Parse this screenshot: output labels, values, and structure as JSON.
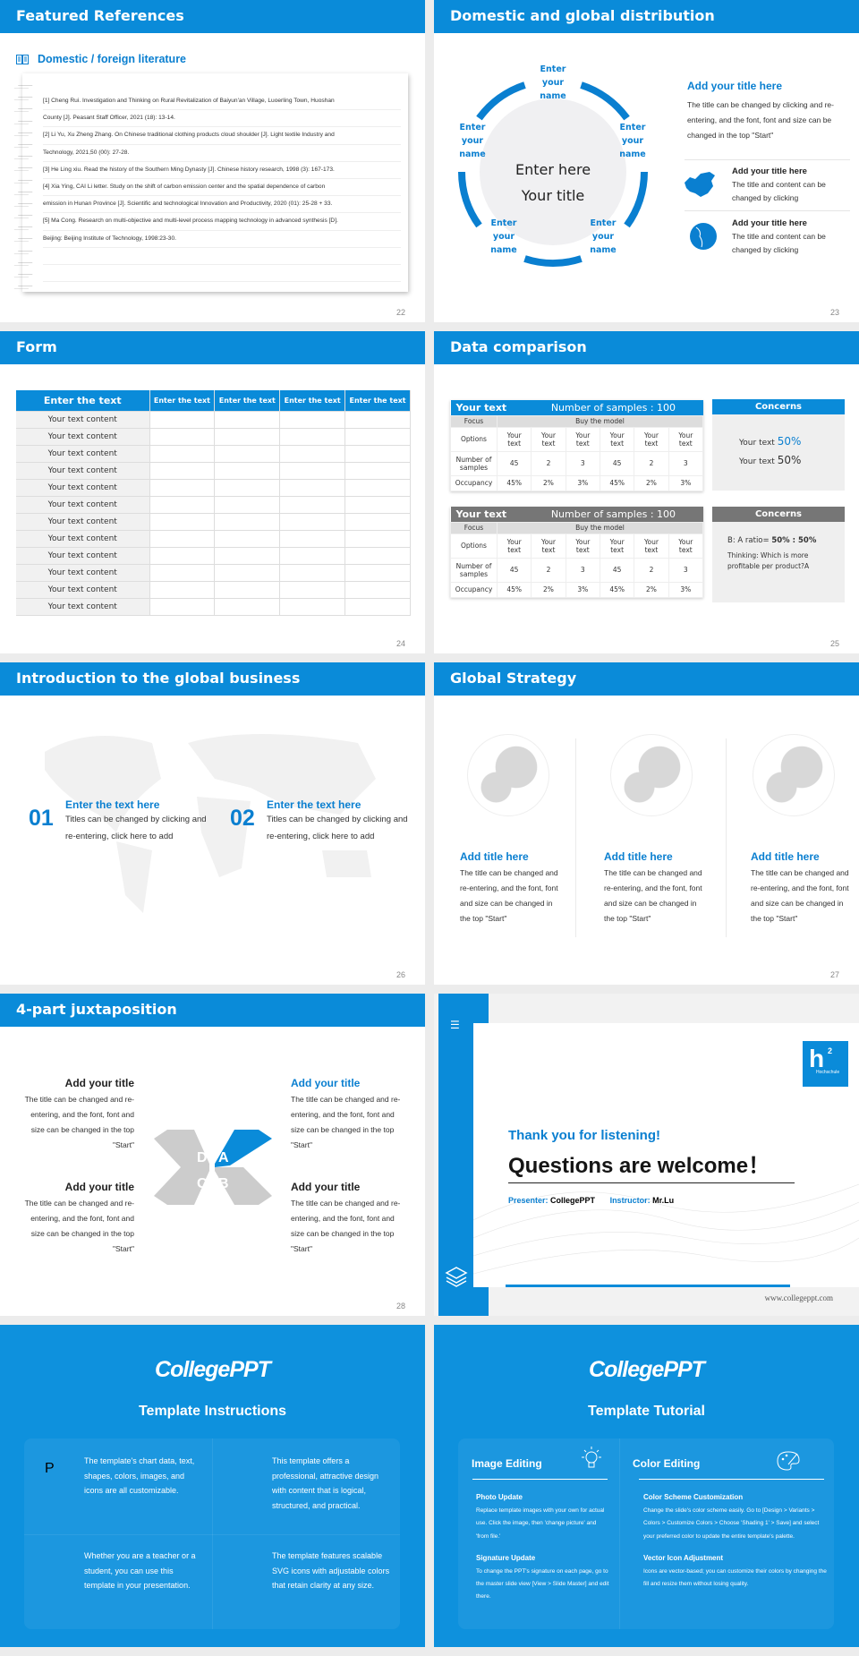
{
  "colors": {
    "accent": "#0a8bd9",
    "gray_header": "#767676",
    "instruction_bg": "#0e91dd"
  },
  "slides": {
    "s22": {
      "title": "Featured References",
      "subtitle": "Domestic / foreign literature",
      "subtitle_icon": "book-icon",
      "page": "22",
      "lines": [
        "[1] Cheng Rui. Investigation and Thinking on Rural Revitalization of Baiyun'an Village, Luoerling Town, Huoshan",
        "County [J]. Peasant Staff Officer, 2021 (18): 13-14.",
        "[2] Li Yu, Xu Zheng Zhang. On Chinese traditional clothing products cloud shoulder [J]. Light textile Industry and",
        "Technology, 2021,50 (00): 27-28.",
        "[3] He Ling xiu. Read the history of the Southern Ming Dynasty [J]. Chinese history research, 1998 (3): 167-173.",
        "[4] Xia Ying, CAI Li letter. Study on the shift of carbon emission center and the spatial dependence of carbon",
        "emission in Hunan Province [J]. Scientific and technological Innovation and Productivity, 2020 (01): 25-28 + 33.",
        "[5] Ma Cong. Research on multi-objective and multi-level process mapping technology in advanced synthesis [D].",
        "Beijing: Beijing Institute of Technology, 1998:23-30.",
        "",
        ""
      ]
    },
    "s23": {
      "title": "Domestic and global distribution",
      "page": "23",
      "center_line1": "Enter here",
      "center_line2": "Your title",
      "node_label": [
        "Enter",
        "your",
        "name"
      ],
      "main_title": "Add your title here",
      "main_text": "The title can be changed by clicking and re-entering, and the font, font and size can be changed in the top \"Start\"",
      "items": [
        {
          "icon": "china-map-icon",
          "title": "Add your title here",
          "text": "The title and content can be changed by clicking"
        },
        {
          "icon": "globe-icon",
          "title": "Add your title here",
          "text": "The title and content can be changed by clicking"
        }
      ]
    },
    "s24": {
      "title": "Form",
      "page": "24",
      "headers": [
        "Enter the text",
        "Enter the text",
        "Enter the text",
        "Enter the text",
        "Enter the text"
      ],
      "rows": [
        "Your text content",
        "Your text content",
        "Your text content",
        "Your text content",
        "Your text content",
        "Your text content",
        "Your text content",
        "Your text content",
        "Your text content",
        "Your text content",
        "Your text content",
        "Your text content"
      ]
    },
    "s25": {
      "title": "Data comparison",
      "page": "25",
      "tables": [
        {
          "label": "Your text",
          "samples": "Number of samples : 100",
          "focus": "Focus",
          "model": "Buy the model",
          "options": "Options",
          "option_values": [
            "Your text",
            "Your text",
            "Your text",
            "Your text",
            "Your text",
            "Your text"
          ],
          "num_label": "Number of samples",
          "nums": [
            "45",
            "2",
            "3",
            "45",
            "2",
            "3"
          ],
          "occ_label": "Occupancy",
          "occ": [
            "45%",
            "2%",
            "3%",
            "45%",
            "2%",
            "3%"
          ]
        },
        {
          "label": "Your text",
          "samples": "Number of samples : 100",
          "focus": "Focus",
          "model": "Buy the model",
          "options": "Options",
          "option_values": [
            "Your text",
            "Your text",
            "Your text",
            "Your text",
            "Your text",
            "Your text"
          ],
          "num_label": "Number of samples",
          "nums": [
            "45",
            "2",
            "3",
            "45",
            "2",
            "3"
          ],
          "occ_label": "Occupancy",
          "occ": [
            "45%",
            "2%",
            "3%",
            "45%",
            "2%",
            "3%"
          ]
        }
      ],
      "concerns": [
        {
          "title": "Concerns",
          "line1_text": "Your text ",
          "line1_value": "50%",
          "line2_text": "Your text ",
          "line2_value": "50%"
        },
        {
          "title": "Concerns",
          "ratio_label": "B: A ratio= ",
          "ratio_value": "50% : 50%",
          "thinking": "Thinking: Which is more profitable per product?A"
        }
      ]
    },
    "s26": {
      "title": "Introduction to the global business",
      "page": "26",
      "items": [
        {
          "num": "01",
          "title": "Enter the text here",
          "text": "Titles can be changed by clicking and re-entering, click here to add"
        },
        {
          "num": "02",
          "title": "Enter the text here",
          "text": "Titles can be changed by clicking and re-entering, click here to add"
        }
      ]
    },
    "s27": {
      "title": "Global Strategy",
      "page": "27",
      "cols": [
        {
          "title": "Add title here",
          "text": "The title can be changed and re-entering, and the font, font and size can be changed in the top \"Start\""
        },
        {
          "title": "Add title here",
          "text": "The title can be changed and re-entering, and the font, font and size can be changed in the top \"Start\""
        },
        {
          "title": "Add title here",
          "text": "The title can be changed and re-entering, and the font, font and size can be changed in the top \"Start\""
        }
      ]
    },
    "s28": {
      "title": "4-part juxtaposition",
      "page": "28",
      "letters": [
        "A",
        "B",
        "C",
        "D"
      ],
      "items": [
        {
          "title": "Add your title",
          "text": "The title can be changed and re-entering, and the font, font and size can be changed in the top \"Start\""
        },
        {
          "title": "Add your title",
          "text": "The title can be changed and re-entering, and the font, font and size can be changed in the top \"Start\""
        },
        {
          "title": "Add your title",
          "text": "The title can be changed and re-entering, and the font, font and size can be changed in the top \"Start\""
        },
        {
          "title": "Add your title",
          "text": "The title can be changed and re-entering, and the font, font and size can be changed in the top \"Start\""
        }
      ]
    },
    "s29": {
      "thanks": "Thank you for listening!",
      "questions": "Questions are welcome！",
      "presenter_label": "Presenter: ",
      "presenter": "CollegePPT",
      "instructor_label": "Instructor: ",
      "instructor": "Mr.Lu",
      "url": "www.collegeppt.com",
      "logo_text": "h",
      "logo_sup": "2",
      "logo_sub": "Hochschule"
    },
    "s30": {
      "brand": "CollegePPT",
      "title": "Template Instructions",
      "items": [
        {
          "icon": "slides-icon",
          "text": "The template's chart data, text, shapes, colors, images, and icons are all customizable."
        },
        {
          "icon": "stack-icon",
          "text": "This template offers a professional, attractive design with content that is logical, structured, and practical."
        },
        {
          "icon": "presenter-icon",
          "text": "Whether you are a teacher or a student, you can use this template in your presentation."
        },
        {
          "icon": "ball-icon",
          "text": "The template features scalable SVG icons with adjustable colors that retain clarity at any size."
        }
      ]
    },
    "s31": {
      "brand": "CollegePPT",
      "title": "Template Tutorial",
      "left": {
        "heading": "Image Editing",
        "icon": "lightbulb-icon",
        "sections": [
          {
            "title": "Photo Update",
            "text": "Replace template images with your own for actual use. Click the image, then 'change picture' and 'from file.'"
          },
          {
            "title": "Signature Update",
            "text": "To change the PPT's signature on each page, go to the master slide view [View > Slide Master] and edit there."
          }
        ]
      },
      "right": {
        "heading": "Color Editing",
        "icon": "palette-icon",
        "sections": [
          {
            "title": "Color Scheme Customization",
            "text": "Change the slide's color scheme easily. Go to [Design > Variants > Colors > Customize Colors > Choose 'Shading 1' > Save] and select your preferred color to update the entire template's palette."
          },
          {
            "title": "Vector Icon Adjustment",
            "text": "Icons are vector-based; you can customize their colors by changing the fill and resize them without losing quality."
          }
        ]
      }
    }
  }
}
